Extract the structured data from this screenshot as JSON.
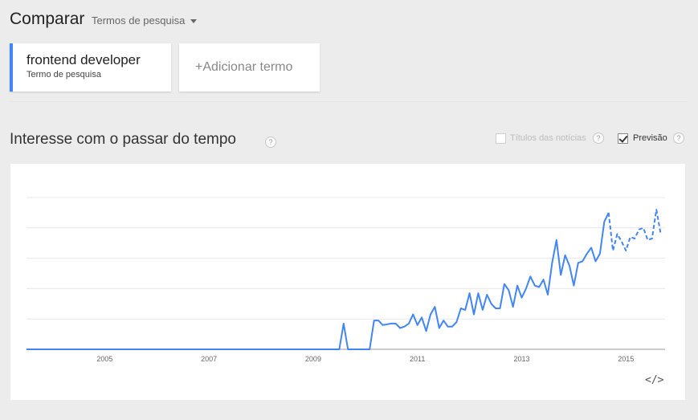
{
  "header": {
    "title": "Comparar",
    "dropdown_label": "Termos de pesquisa"
  },
  "term_card": {
    "term": "frontend developer",
    "subtitle": "Termo de pesquisa",
    "accent_color": "#4285f4"
  },
  "add_term": {
    "plus": "+",
    "label": "Adicionar termo"
  },
  "section": {
    "title": "Interesse com o passar do tempo"
  },
  "options": {
    "headlines": {
      "label": "Títulos das notícias",
      "checked": false
    },
    "forecast": {
      "label": "Previsão",
      "checked": true
    }
  },
  "help_glyph": "?",
  "embed_glyph": "</>",
  "chart_data": {
    "type": "line",
    "x_tick_labels": [
      "2005",
      "2007",
      "2009",
      "2011",
      "2013",
      "2015"
    ],
    "ylim": [
      0,
      100
    ],
    "grid": true,
    "series_color": "#4285f4",
    "series": [
      {
        "values_actual": [
          [
            "2004-01",
            0
          ],
          [
            "2010-01",
            0
          ],
          [
            "2010-02",
            17
          ],
          [
            "2010-03",
            0
          ],
          [
            "2010-08",
            0
          ],
          [
            "2010-09",
            19
          ],
          [
            "2010-10",
            19
          ],
          [
            "2010-11",
            16
          ],
          [
            "2011-01",
            17
          ],
          [
            "2011-02",
            17
          ],
          [
            "2011-03",
            14
          ],
          [
            "2011-04",
            15
          ],
          [
            "2011-05",
            17
          ],
          [
            "2011-06",
            23
          ],
          [
            "2011-07",
            16
          ],
          [
            "2011-08",
            21
          ],
          [
            "2011-09",
            12
          ],
          [
            "2011-10",
            23
          ],
          [
            "2011-11",
            28
          ],
          [
            "2011-12",
            14
          ],
          [
            "2012-01",
            19
          ],
          [
            "2012-02",
            15
          ],
          [
            "2012-03",
            15
          ],
          [
            "2012-04",
            18
          ],
          [
            "2012-05",
            27
          ],
          [
            "2012-06",
            26
          ],
          [
            "2012-07",
            37
          ],
          [
            "2012-08",
            23
          ],
          [
            "2012-09",
            37
          ],
          [
            "2012-10",
            26
          ],
          [
            "2012-11",
            36
          ],
          [
            "2012-12",
            30
          ],
          [
            "2013-01",
            27
          ],
          [
            "2013-02",
            27
          ],
          [
            "2013-03",
            43
          ],
          [
            "2013-04",
            39
          ],
          [
            "2013-05",
            28
          ],
          [
            "2013-06",
            42
          ],
          [
            "2013-07",
            34
          ],
          [
            "2013-08",
            40
          ],
          [
            "2013-09",
            48
          ],
          [
            "2013-10",
            42
          ],
          [
            "2013-11",
            41
          ],
          [
            "2013-12",
            46
          ],
          [
            "2014-01",
            36
          ],
          [
            "2014-02",
            57
          ],
          [
            "2014-03",
            72
          ],
          [
            "2014-04",
            49
          ],
          [
            "2014-05",
            62
          ],
          [
            "2014-06",
            55
          ],
          [
            "2014-07",
            42
          ],
          [
            "2014-08",
            57
          ],
          [
            "2014-09",
            58
          ],
          [
            "2014-10",
            63
          ],
          [
            "2014-11",
            67
          ],
          [
            "2014-12",
            58
          ],
          [
            "2015-01",
            63
          ],
          [
            "2015-02",
            84
          ],
          [
            "2015-03",
            90
          ]
        ],
        "values_forecast": [
          [
            "2015-03",
            90
          ],
          [
            "2015-04",
            65
          ],
          [
            "2015-05",
            76
          ],
          [
            "2015-06",
            71
          ],
          [
            "2015-07",
            65
          ],
          [
            "2015-08",
            74
          ],
          [
            "2015-09",
            73
          ],
          [
            "2015-10",
            79
          ],
          [
            "2015-11",
            80
          ],
          [
            "2015-12",
            72
          ],
          [
            "2016-01",
            73
          ],
          [
            "2016-02",
            92
          ],
          [
            "2016-03",
            76
          ]
        ]
      }
    ]
  }
}
